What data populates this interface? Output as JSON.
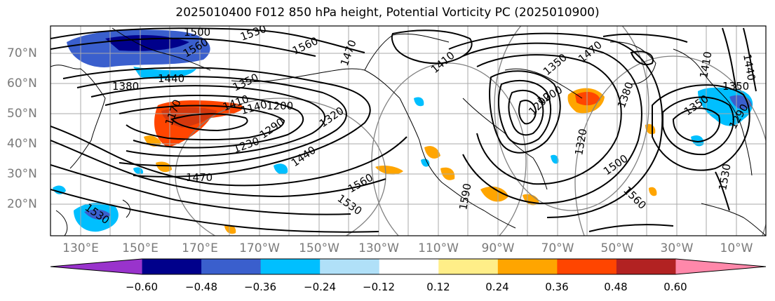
{
  "title": "2025010400 F012 850 hPa height, Potential Vorticity PC (2025010900)",
  "lat_labels": [
    "70°N",
    "60°N",
    "50°N",
    "40°N",
    "30°N",
    "20°N"
  ],
  "lon_labels": [
    "130°E",
    "150°E",
    "170°E",
    "170°W",
    "150°W",
    "130°W",
    "110°W",
    "90°W",
    "70°W",
    "50°W",
    "30°W",
    "10°W"
  ],
  "colorbar": {
    "ticks": [
      "−0.60",
      "−0.48",
      "−0.36",
      "−0.24",
      "−0.12",
      "0.12",
      "0.24",
      "0.36",
      "0.48",
      "0.60"
    ],
    "colors": [
      "#9933cc",
      "#00008b",
      "#3a5fcd",
      "#00bfff",
      "#b0e0f8",
      "#ffffff",
      "#ffee88",
      "#ffa500",
      "#ff4500",
      "#b22222",
      "#ff88aa"
    ]
  },
  "contour_labels": [
    "1500",
    "1530",
    "1560",
    "1560",
    "1470",
    "1440",
    "1380",
    "1350",
    "1410",
    "1140",
    "1200",
    "1170",
    "1230",
    "1290",
    "1320",
    "1440",
    "1470",
    "1530",
    "1560",
    "1590",
    "1530",
    "1410",
    "1470",
    "1350",
    "1290",
    "1200",
    "1380",
    "1320",
    "1500",
    "1560",
    "1350",
    "1350",
    "1410",
    "1290",
    "1440",
    "1530"
  ]
}
